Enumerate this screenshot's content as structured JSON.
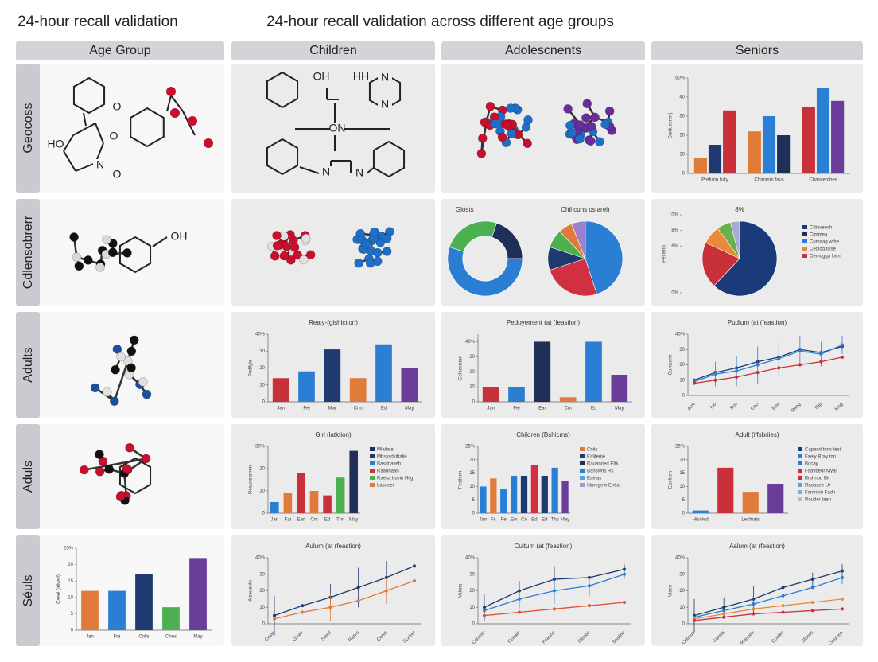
{
  "header": {
    "title": "24-hour recall validation",
    "subtitle": "24-hour recall validation across different age groups"
  },
  "columns": [
    "Age Group",
    "Children",
    "Adolescnents",
    "Seniors"
  ],
  "rows": [
    "Geocoss",
    "Cdlensobrerr",
    "Adults",
    "Aduls",
    "Séuls"
  ],
  "cells": [
    [
      {
        "molecule": {
          "labels": [
            "O",
            "HO",
            "O",
            "N",
            "O"
          ]
        }
      },
      {
        "molecule": {
          "labels": [
            "OH",
            "HH",
            "N",
            "N",
            "ON",
            "N",
            "N"
          ]
        }
      },
      {
        "molecule": {
          "labels": []
        }
      },
      {
        "chart_data": {
          "type": "grouped_bar",
          "ylabel": "Cantuseren)",
          "groups": [
            {
              "label": "Prefunn fuky",
              "values": [
                8,
                15,
                33
              ],
              "colors": [
                "#e07b39",
                "#1f3a6e",
                "#c8303a"
              ]
            },
            {
              "label": "Chanmm faus",
              "values": [
                22,
                30,
                20
              ],
              "colors": [
                "#e07b39",
                "#2a7fd4",
                "#1f2f57"
              ]
            },
            {
              "label": "Chancenthes",
              "values": [
                35,
                45,
                38
              ],
              "colors": [
                "#c8303a",
                "#2a7fd4",
                "#6a3d9a"
              ]
            }
          ],
          "ylim": [
            0,
            50
          ],
          "yticks": [
            0,
            10,
            20,
            30,
            40,
            {
              "value": 50,
              "label": "50%"
            }
          ]
        }
      }
    ],
    [
      {
        "molecule": {
          "labels": [
            "OH"
          ]
        }
      },
      {
        "molecule": {
          "labels": []
        }
      },
      {
        "chart_data": [
          {
            "type": "pie",
            "donut": true,
            "title": "Glosts",
            "values": [
              25,
              20,
              55
            ],
            "colors": [
              "#4caf50",
              "#1f2f57",
              "#2a7fd4"
            ]
          },
          {
            "type": "pie",
            "title": "Chil cuns oslarel)",
            "values": [
              45,
              25,
              10,
              8,
              6,
              6
            ],
            "colors": [
              "#2a7fd4",
              "#d03040",
              "#1f3a6e",
              "#4caf50",
              "#e07b39",
              "#9b7fd0"
            ]
          }
        ]
      },
      {
        "chart_data": {
          "type": "pie",
          "title": "8%",
          "ylabel": "Pexlenn",
          "values": [
            62,
            20,
            8,
            6,
            4
          ],
          "colors": [
            "#1a3a7a",
            "#c8303a",
            "#e88a3a",
            "#6ab04c",
            "#a9a9d6"
          ],
          "legend": [
            {
              "name": "Cdiaveoch",
              "color": "#1a3a7a"
            },
            {
              "name": "Cimmea",
              "color": "#1f2f57"
            },
            {
              "name": "Cumaag wthe",
              "color": "#2a7fd4"
            },
            {
              "name": "Cediog tlsse",
              "color": "#e88a3a"
            },
            {
              "name": "Cemogga llam",
              "color": "#c8303a"
            }
          ],
          "ylim": [
            0,
            10
          ],
          "yticks": [
            {
              "value": 0,
              "label": "0%"
            },
            {
              "value": 6,
              "label": "6%"
            },
            {
              "value": 8,
              "label": "8%"
            },
            {
              "value": 10,
              "label": "10%"
            }
          ]
        }
      }
    ],
    [
      {
        "molecule": {
          "labels": []
        }
      },
      {
        "chart_data": {
          "type": "bar",
          "title": "Realy-(gishiction)",
          "ylabel": "Pudllyte",
          "categories": [
            "Jan",
            "Fei",
            "Mar",
            "Cnn",
            "Ed",
            "May"
          ],
          "values": [
            14,
            18,
            31,
            14,
            34,
            20
          ],
          "colors": [
            "#c8303a",
            "#2a7fd4",
            "#1f3a6e",
            "#e07b39",
            "#2a7fd4",
            "#6a3d9a"
          ],
          "ylim": [
            0,
            40
          ],
          "yticks": [
            0,
            10,
            20,
            30,
            {
              "value": 40,
              "label": "40%"
            }
          ]
        }
      },
      {
        "chart_data": {
          "type": "bar",
          "title": "Pedoyement (at (feastion)",
          "ylabel": "Gelsoentan",
          "categories": [
            "Jan",
            "Fei",
            "Ear",
            "Cm",
            "Ed",
            "May"
          ],
          "values": [
            10,
            10,
            40,
            3,
            40,
            18
          ],
          "colors": [
            "#c8303a",
            "#2a7fd4",
            "#1f2f57",
            "#e07b39",
            "#2a7fd4",
            "#6a3d9a"
          ],
          "ylim": [
            0,
            45
          ],
          "yticks": [
            0,
            10,
            20,
            30,
            {
              "value": 40,
              "label": "40%"
            }
          ]
        }
      },
      {
        "chart_data": {
          "type": "line",
          "title": "Pudium (at (feastion)",
          "ylabel": "Gunsuem",
          "categories": [
            "Aort",
            "Iuo",
            "Sus",
            "Cao",
            "Emt",
            "Rang",
            "Thg",
            "Mog"
          ],
          "series": [
            {
              "color": "#1f3a6e",
              "values": [
                10,
                15,
                18,
                22,
                25,
                30,
                28,
                32
              ]
            },
            {
              "color": "#2a7fd4",
              "values": [
                9,
                14,
                16,
                20,
                24,
                29,
                27,
                33
              ],
              "errors": [
                2,
                8,
                10,
                12,
                12,
                10,
                8,
                6
              ]
            },
            {
              "color": "#c8303a",
              "values": [
                8,
                10,
                12,
                15,
                18,
                20,
                22,
                25
              ]
            }
          ],
          "ylim": [
            0,
            40
          ],
          "yticks": [
            0,
            10,
            20,
            30,
            {
              "value": 40,
              "label": "40%"
            }
          ]
        }
      }
    ],
    [
      {
        "molecule": {
          "labels": []
        }
      },
      {
        "chart_data": {
          "type": "bar",
          "title": "Girl (latktion)",
          "ylabel": "Reaunsanren",
          "categories": [
            "Jan",
            "Fai",
            "Ear",
            "Cm",
            "Ed",
            "Thn",
            "May"
          ],
          "values": [
            5,
            9,
            18,
            10,
            8,
            16,
            28
          ],
          "colors": [
            "#2a7fd4",
            "#e07b39",
            "#c8303a",
            "#e07b39",
            "#c8303a",
            "#4caf50",
            "#1f2f57"
          ],
          "legend": [
            {
              "name": "Mlaifaie",
              "color": "#1f2f57"
            },
            {
              "name": "Mbsysdvittalie",
              "color": "#1f3a6e"
            },
            {
              "name": "Basdnaveb",
              "color": "#2a7fd4"
            },
            {
              "name": "Raaunaan",
              "color": "#c8303a"
            },
            {
              "name": "Raesa buvin Hiig",
              "color": "#4caf50"
            },
            {
              "name": "Lasueei",
              "color": "#e07b39"
            }
          ],
          "ylim": [
            0,
            30
          ],
          "yticks": [
            0,
            10,
            20,
            {
              "value": 30,
              "label": "30%"
            }
          ]
        }
      },
      {
        "chart_data": {
          "type": "bar",
          "title": "Children (Bshicms)",
          "ylabel": "Fesilenn",
          "categories": [
            "Jan",
            "Fs",
            "Fe",
            "Ew",
            "Cn",
            "Ed",
            "Ed",
            "Thy",
            "May"
          ],
          "values": [
            10,
            13,
            9,
            14,
            14,
            18,
            14,
            17,
            12
          ],
          "colors": [
            "#2a7fd4",
            "#e07b39",
            "#2a7fd4",
            "#2a7fd4",
            "#1f3a6e",
            "#d03040",
            "#1f3a6e",
            "#2a7fd4",
            "#6a3d9a"
          ],
          "legend": [
            {
              "name": "Cnits",
              "color": "#e07b39"
            },
            {
              "name": "Ealiteriie",
              "color": "#1f3a6e"
            },
            {
              "name": "Rauanned Eltk",
              "color": "#1f2f57"
            },
            {
              "name": "Banswns Rs",
              "color": "#2a7fd4"
            },
            {
              "name": "Eaelas",
              "color": "#5aa0e0"
            },
            {
              "name": "Idaregem Entia",
              "color": "#9b9bd6"
            }
          ],
          "ylim": [
            0,
            25
          ],
          "yticks": [
            0,
            5,
            10,
            15,
            20,
            {
              "value": 25,
              "label": "25%"
            }
          ]
        }
      },
      {
        "chart_data": {
          "type": "bar",
          "title": "Adult (iffsbriies)",
          "ylabel": "Eaeloen",
          "categories": [
            "Hisnled",
            null,
            "Lesfnats",
            null
          ],
          "values": [
            1,
            17,
            8,
            11
          ],
          "colors": [
            "#2a7fd4",
            "#c8303a",
            "#e07b39",
            "#6a3d9a"
          ],
          "legend": [
            {
              "name": "Capand tnns test",
              "color": "#1f3a6e"
            },
            {
              "name": "Faely Rray tnn",
              "color": "#2a7fd4"
            },
            {
              "name": "Bocay",
              "color": "#2a7fd4"
            },
            {
              "name": "Faaybeor Myal",
              "color": "#c8303a"
            },
            {
              "name": "Brshnod Bir",
              "color": "#c8303a"
            },
            {
              "name": "Raoaaee Ur",
              "color": "#5aa0e0"
            },
            {
              "name": "Famnyin Fadh",
              "color": "#9b9bd6"
            },
            {
              "name": "Rouder taan",
              "color": "#b8b8e0"
            }
          ],
          "ylim": [
            0,
            25
          ],
          "yticks": [
            0,
            5,
            10,
            15,
            20,
            {
              "value": 25,
              "label": "25%"
            }
          ]
        }
      }
    ],
    [
      {
        "chart_data": {
          "type": "bar",
          "ylabel": "Cseel (alived)",
          "categories": [
            "Jan",
            "Fre",
            "Cnlis",
            "Cnes",
            "May"
          ],
          "values": [
            12,
            12,
            17,
            7,
            22
          ],
          "colors": [
            "#e07b39",
            "#2a7fd4",
            "#1f3a6e",
            "#4caf50",
            "#6a3d9a"
          ],
          "ylim": [
            0,
            25
          ],
          "yticks": [
            0,
            5,
            10,
            15,
            20,
            {
              "value": 25,
              "label": "25%"
            }
          ]
        }
      },
      {
        "chart_data": {
          "type": "line",
          "title": "Aulum (at (feastion)",
          "ylabel": "Alseuentn",
          "categories": [
            "Cesta",
            "Gleav",
            "Stlesl",
            "Ranrs",
            "Cenis",
            "Fcaiter"
          ],
          "series": [
            {
              "color": "#1f3a6e",
              "values": [
                5,
                11,
                16,
                22,
                28,
                35
              ],
              "errors": [
                12,
                0,
                8,
                12,
                10,
                0
              ]
            },
            {
              "color": "#e07b39",
              "values": [
                3,
                7,
                10,
                14,
                20,
                26
              ],
              "errors": [
                0,
                0,
                8,
                0,
                8,
                0
              ]
            }
          ],
          "ylim": [
            0,
            40
          ],
          "yticks": [
            0,
            10,
            20,
            30,
            {
              "value": 40,
              "label": "40%"
            }
          ]
        }
      },
      {
        "chart_data": {
          "type": "line",
          "title": "Cultum (at (feastion)",
          "ylabel": "Valsns",
          "categories": [
            "Canmle",
            "Cenale",
            "Feauns",
            "Rlsaon",
            "Soaline"
          ],
          "series": [
            {
              "color": "#1f3a6e",
              "values": [
                10,
                20,
                27,
                28,
                33
              ],
              "errors": [
                8,
                6,
                8,
                0,
                3
              ]
            },
            {
              "color": "#2a7fd4",
              "values": [
                8,
                15,
                20,
                23,
                30
              ],
              "errors": [
                0,
                6,
                8,
                6,
                3
              ]
            },
            {
              "color": "#e05030",
              "values": [
                5,
                7,
                9,
                11,
                13
              ]
            }
          ],
          "ylim": [
            0,
            40
          ],
          "yticks": [
            0,
            10,
            20,
            30,
            {
              "value": 40,
              "label": "40%"
            }
          ]
        }
      },
      {
        "chart_data": {
          "type": "line",
          "title": "Aalum (at (feastion)",
          "ylabel": "Vlaes",
          "categories": [
            "Cnsoue",
            "Fansla",
            "Rlasoen",
            "Coales",
            "Sfuess",
            "Cleuinss"
          ],
          "series": [
            {
              "color": "#1f3a6e",
              "values": [
                5,
                10,
                15,
                22,
                27,
                32
              ],
              "errors": [
                10,
                6,
                8,
                6,
                4,
                4
              ]
            },
            {
              "color": "#2a7fd4",
              "values": [
                4,
                8,
                12,
                17,
                22,
                28
              ],
              "errors": [
                0,
                0,
                4,
                4,
                0,
                4
              ]
            },
            {
              "color": "#e88a3a",
              "values": [
                3,
                6,
                9,
                11,
                13,
                15
              ]
            },
            {
              "color": "#d03040",
              "values": [
                2,
                4,
                6,
                7,
                8,
                9
              ]
            }
          ],
          "ylim": [
            0,
            40
          ],
          "yticks": [
            0,
            10,
            20,
            30,
            {
              "value": 40,
              "label": "40%"
            }
          ]
        }
      }
    ]
  ]
}
